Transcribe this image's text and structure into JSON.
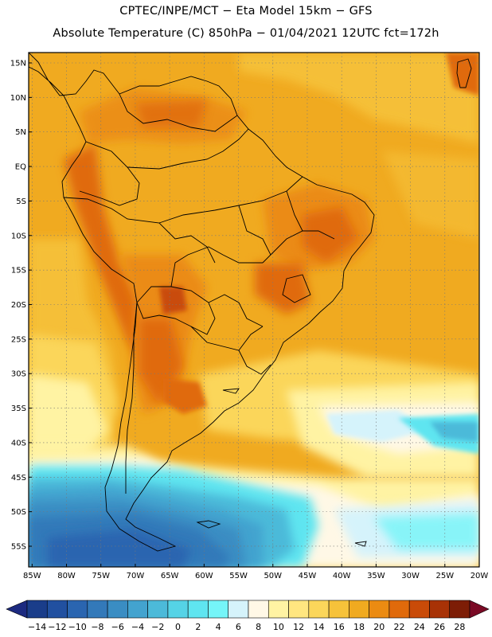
{
  "header": {
    "line1": "CPTEC/INPE/MCT −  Eta Model 15km − GFS",
    "line2": "Absolute Temperature (C) 850hPa − 01/04/2021 12UTC fct=172h"
  },
  "axes": {
    "lat_labels": [
      "15N",
      "10N",
      "5N",
      "EQ",
      "5S",
      "10S",
      "15S",
      "20S",
      "25S",
      "30S",
      "35S",
      "40S",
      "45S",
      "50S",
      "55S"
    ],
    "lon_labels": [
      "85W",
      "80W",
      "75W",
      "70W",
      "65W",
      "60W",
      "55W",
      "50W",
      "45W",
      "40W",
      "35W",
      "30W",
      "25W",
      "20W"
    ],
    "lon_range_deg": [
      -85.5,
      -20
    ],
    "lat_range_deg": [
      -58,
      16.5
    ]
  },
  "colorbar": {
    "labels": [
      "-14",
      "-12",
      "-10",
      "-8",
      "-6",
      "-4",
      "-2",
      "0",
      "2",
      "4",
      "6",
      "8",
      "10",
      "12",
      "14",
      "16",
      "18",
      "20",
      "22",
      "24",
      "26",
      "28"
    ],
    "colors": [
      "#1a3d8a",
      "#2150a0",
      "#2a65b0",
      "#3379b9",
      "#3a8dc3",
      "#43a3cf",
      "#4cbad9",
      "#55d3e6",
      "#5fe5f0",
      "#75f5f8",
      "#d5f3fb",
      "#fff8e6",
      "#fff3a3",
      "#ffe680",
      "#fbd65a",
      "#f6c23a",
      "#f0aa20",
      "#eb8b12",
      "#e06a0b",
      "#c94b08",
      "#a83206",
      "#7d1d06"
    ],
    "under_color": "#1c2a80",
    "over_color": "#7a0a25"
  },
  "colors": {
    "ocean_tropical": "#f0aa20",
    "land_hot": "#e07818",
    "cold_south": "#2a65b0",
    "border": "#000000"
  }
}
